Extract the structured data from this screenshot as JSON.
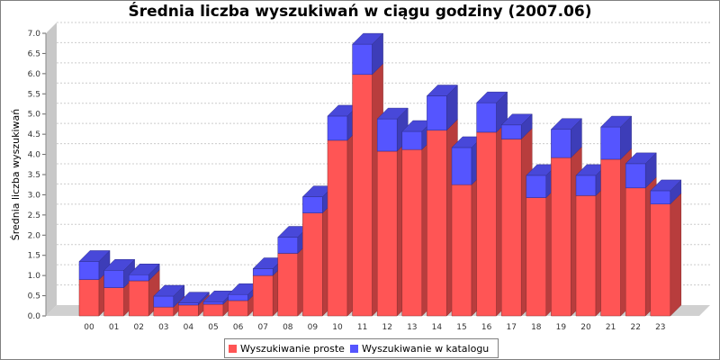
{
  "chart_data": {
    "type": "bar",
    "stacked": true,
    "style": "3d",
    "title": "Średnia liczba wyszukiwań w ciągu godziny (2007.06)",
    "ylabel": "Średnia liczba wyszukiwań",
    "xlabel": "",
    "ylim": [
      0,
      7.0
    ],
    "yticks": [
      "0.0",
      "0.5",
      "1.0",
      "1.5",
      "2.0",
      "2.5",
      "3.0",
      "3.5",
      "4.0",
      "4.5",
      "5.0",
      "5.5",
      "6.0",
      "6.5",
      "7.0"
    ],
    "categories": [
      "00",
      "01",
      "02",
      "03",
      "04",
      "05",
      "06",
      "07",
      "08",
      "09",
      "10",
      "11",
      "12",
      "13",
      "14",
      "15",
      "16",
      "17",
      "18",
      "19",
      "20",
      "21",
      "22",
      "23"
    ],
    "series": [
      {
        "name": "Wyszukiwanie proste",
        "color": "#ff5555",
        "values": [
          0.9,
          0.7,
          0.87,
          0.22,
          0.27,
          0.29,
          0.38,
          1.0,
          1.55,
          2.55,
          4.35,
          5.98,
          4.08,
          4.12,
          4.6,
          3.25,
          4.55,
          4.38,
          2.93,
          3.92,
          2.98,
          3.88,
          3.17,
          2.77
        ]
      },
      {
        "name": "Wyszukiwanie w katalogu",
        "color": "#5555ff",
        "values": [
          0.45,
          0.43,
          0.15,
          0.27,
          0.05,
          0.06,
          0.15,
          0.17,
          0.4,
          0.4,
          0.6,
          0.75,
          0.8,
          0.45,
          0.85,
          0.92,
          0.73,
          0.35,
          0.55,
          0.7,
          0.5,
          0.8,
          0.6,
          0.33
        ]
      }
    ],
    "grid": true,
    "legend": "bottom"
  }
}
